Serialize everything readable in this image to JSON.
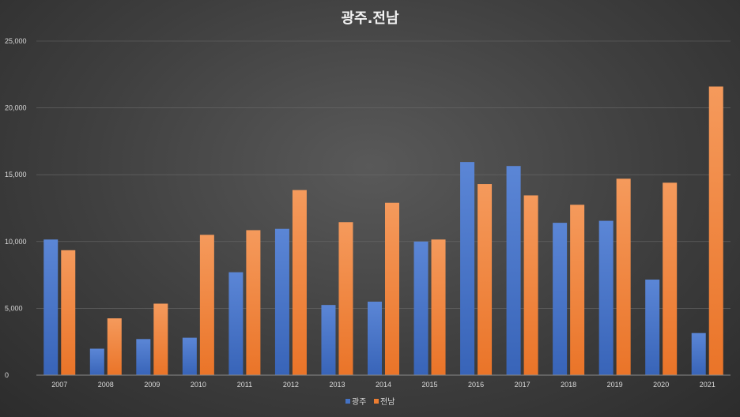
{
  "chart_data": {
    "type": "bar",
    "title": "광주.전남",
    "categories": [
      "2007",
      "2008",
      "2009",
      "2010",
      "2011",
      "2012",
      "2013",
      "2014",
      "2015",
      "2016",
      "2017",
      "2018",
      "2019",
      "2020",
      "2021"
    ],
    "series": [
      {
        "name": "광주",
        "color": "#4472c4",
        "values": [
          10150,
          1980,
          2700,
          2800,
          7700,
          10950,
          5250,
          5500,
          10000,
          15950,
          15650,
          11400,
          11550,
          7150,
          3150
        ]
      },
      {
        "name": "전남",
        "color": "#ed7d31",
        "values": [
          9350,
          4250,
          5350,
          10500,
          10850,
          13850,
          11450,
          12900,
          10150,
          14300,
          13450,
          12750,
          14700,
          14400,
          21600
        ]
      }
    ],
    "ylim": [
      0,
      25000
    ],
    "yticks": [
      "0",
      "5,000",
      "10,000",
      "15,000",
      "20,000",
      "25,000"
    ],
    "ytick_values": [
      0,
      5000,
      10000,
      15000,
      20000,
      25000
    ],
    "grid": true,
    "legend_position": "bottom"
  }
}
